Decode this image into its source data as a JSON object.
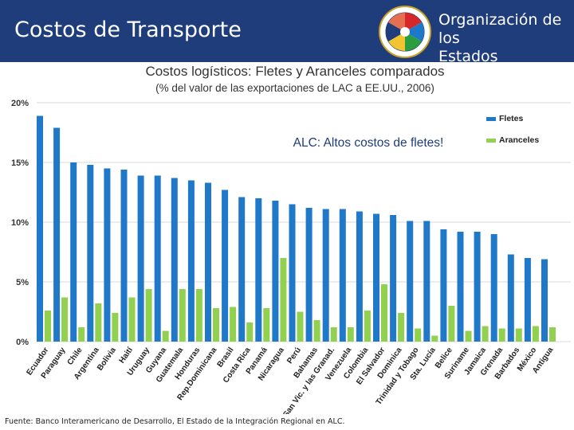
{
  "header": {
    "title": "Costos de Transporte",
    "org_line1": "Organización de los",
    "org_line2": "Estados Americanos",
    "logo_ring_text": "ORGANIZACIÓN DE LOS ESTADOS AMERICANOS"
  },
  "source": "Fuente: Banco Interamericano de Desarrollo,  El Estado de la Integración Regional en ALC.",
  "annotation": "ALC: Altos costos de fletes!",
  "colors": {
    "header_bg": "#1f3d7a",
    "fletes": "#1f78c8",
    "aranceles": "#92d050",
    "annotation": "#1f3d7a"
  },
  "chart_data": {
    "type": "bar",
    "title": "Costos logísticos: Fletes y Aranceles comparados",
    "subtitle": "(% del valor de las exportaciones de LAC a EE.UU., 2006)",
    "xlabel": "",
    "ylabel": "",
    "ylim": [
      0,
      20
    ],
    "yticks": [
      "0%",
      "5%",
      "10%",
      "15%",
      "20%"
    ],
    "legend_position": "top-right",
    "categories": [
      "Ecuador",
      "Paraguay",
      "Chile",
      "Argentina",
      "Bolivia",
      "Haití",
      "Uruguay",
      "Guyana",
      "Guatemala",
      "Honduras",
      "Rep.Dominicana",
      "Brasil",
      "Costa Rica",
      "Panamá",
      "Nicaragua",
      "Perú",
      "Bahamas",
      "San Vic. y las Granad.",
      "Venezuela",
      "Colombia",
      "El Salvador",
      "Dominica",
      "Trinidad y Tobago",
      "Sta. Lucía",
      "Belice",
      "Suriname",
      "Jamaica",
      "Grenada",
      "Barbados",
      "México",
      "Antigua"
    ],
    "series": [
      {
        "name": "Fletes",
        "values": [
          18.9,
          17.9,
          15.0,
          14.8,
          14.5,
          14.4,
          13.9,
          13.9,
          13.7,
          13.5,
          13.3,
          12.7,
          12.1,
          12.0,
          11.8,
          11.5,
          11.2,
          11.1,
          11.1,
          10.9,
          10.7,
          10.6,
          10.1,
          10.1,
          9.4,
          9.2,
          9.2,
          9.0,
          7.3,
          7.0,
          6.9
        ]
      },
      {
        "name": "Aranceles",
        "values": [
          2.6,
          3.7,
          1.2,
          3.2,
          2.4,
          3.7,
          4.4,
          0.9,
          4.4,
          4.4,
          2.8,
          2.9,
          1.6,
          2.8,
          7.0,
          2.5,
          1.8,
          1.2,
          1.2,
          2.6,
          4.8,
          2.4,
          1.1,
          0.5,
          3.0,
          0.9,
          1.3,
          1.1,
          1.1,
          1.3,
          1.2
        ]
      }
    ]
  }
}
